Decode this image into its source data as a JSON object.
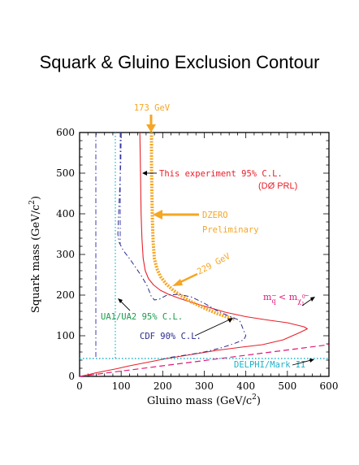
{
  "title": "Squark & Gluino Exclusion Contour",
  "colors": {
    "this_experiment": "#e8202a",
    "dzero_prelim": "#f5a623",
    "cdf": "#2b2b8f",
    "ua": "#1a9a4a",
    "ua_lines": "#3b3bb0",
    "delphi": "#19b4c8",
    "mq_lt": "#e0187a"
  },
  "chart_data": {
    "type": "line",
    "xlabel_main": "Gluino mass (GeV/c",
    "xlabel_sup": "2",
    "xlabel_end": ")",
    "ylabel_main": "Squark mass (GeV/c",
    "ylabel_sup": "2",
    "ylabel_end": ")",
    "xlim": [
      0,
      600
    ],
    "ylim": [
      0,
      600
    ],
    "xticks": [
      "0",
      "100",
      "200",
      "300",
      "400",
      "500",
      "600"
    ],
    "yticks": [
      "0",
      "100",
      "200",
      "300",
      "400",
      "500",
      "600"
    ],
    "series": [
      {
        "key": "this_experiment",
        "x": [
          145,
          146,
          147,
          148,
          150,
          153,
          158,
          166,
          178,
          194,
          214,
          240,
          270,
          310,
          350,
          400,
          450,
          500,
          540,
          548,
          530,
          490,
          440,
          390,
          330,
          270,
          210,
          160,
          120,
          90,
          60,
          40,
          20,
          0
        ],
        "y": [
          600,
          540,
          470,
          400,
          340,
          290,
          260,
          240,
          225,
          212,
          202,
          192,
          182,
          170,
          158,
          147,
          139,
          132,
          122,
          117,
          108,
          90,
          78,
          72,
          64,
          54,
          44,
          34,
          26,
          19,
          13,
          9,
          4,
          0
        ]
      },
      {
        "key": "dzero_prelim",
        "x": [
          173,
          173,
          174,
          175,
          177,
          180,
          186,
          195,
          208,
          225,
          245,
          270,
          300,
          330,
          355,
          375
        ],
        "y": [
          600,
          520,
          450,
          390,
          330,
          290,
          265,
          245,
          228,
          212,
          198,
          183,
          168,
          155,
          146,
          140
        ]
      },
      {
        "key": "cdf",
        "x": [
          100,
          99,
          96,
          92,
          95,
          105,
          120,
          135,
          150,
          163,
          172,
          180,
          192,
          210,
          240,
          270,
          300,
          330,
          360,
          385,
          400,
          395,
          370,
          340,
          300,
          260,
          220,
          200
        ],
        "y": [
          600,
          520,
          450,
          350,
          330,
          310,
          290,
          268,
          245,
          222,
          198,
          188,
          190,
          200,
          202,
          195,
          180,
          162,
          148,
          138,
          100,
          90,
          80,
          70,
          60,
          53,
          47,
          43
        ]
      }
    ],
    "annotations": {
      "this_exp": "This experiment 95% C.L.",
      "this_exp_sub": "(DØ PRL)",
      "dzero_1": "DZERO",
      "dzero_2": "Preliminary",
      "gev173": "173 GeV",
      "gev229": "229 GeV",
      "ua": "UA1/UA2 95% C.L.",
      "cdf": "CDF 90% C.L.",
      "delphi": "DELPHI/Mark II",
      "mq_lt_1": "m",
      "mq_lt_q": "q",
      "mq_lt_tilde": "~",
      "mq_lt_2": " < m",
      "mq_lt_chi": "χ",
      "mq_lt_1sub": "1",
      "mq_lt_0": "0"
    }
  }
}
